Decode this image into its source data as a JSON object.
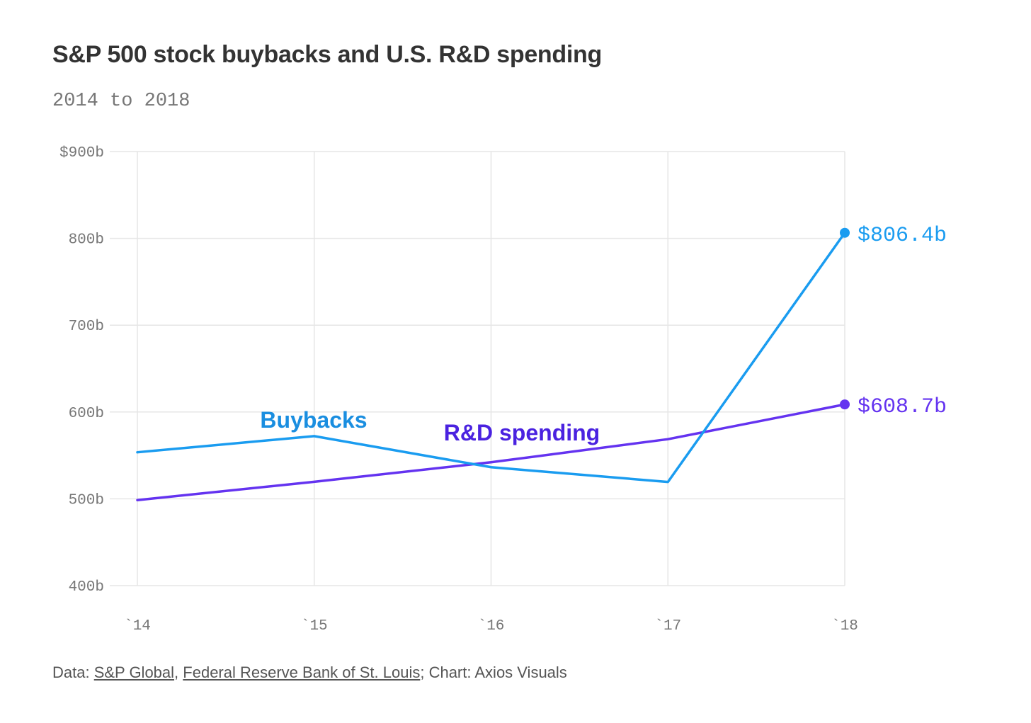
{
  "chart_data": {
    "type": "line",
    "title": "S&P 500 stock buybacks and U.S. R&D spending",
    "subtitle": "2014 to 2018",
    "categories": [
      "`14",
      "`15",
      "`16",
      "`17",
      "`18"
    ],
    "ylim": [
      400,
      900
    ],
    "yticks": [
      {
        "value": 900,
        "label": "$900b"
      },
      {
        "value": 800,
        "label": "800b"
      },
      {
        "value": 700,
        "label": "700b"
      },
      {
        "value": 600,
        "label": "600b"
      },
      {
        "value": 500,
        "label": "500b"
      },
      {
        "value": 400,
        "label": "400b"
      }
    ],
    "grid": true,
    "series": [
      {
        "name": "Buybacks",
        "color": "#1a9cf0",
        "values": [
          553.6,
          572.2,
          536.4,
          519.4,
          806.4
        ],
        "end_label": "$806.4b"
      },
      {
        "name": "R&D spending",
        "color": "#6433f0",
        "values": [
          498.5,
          519.6,
          542.1,
          568.7,
          608.7
        ],
        "end_label": "$608.7b"
      }
    ],
    "series_label_colors": {
      "Buybacks": "#1a8ee0",
      "R&D spending": "#4a22e0"
    }
  },
  "footer": {
    "prefix": "Data: ",
    "source1": "S&P Global",
    "sep": ", ",
    "source2": "Federal Reserve Bank of St. Louis",
    "suffix": "; Chart: Axios Visuals"
  }
}
